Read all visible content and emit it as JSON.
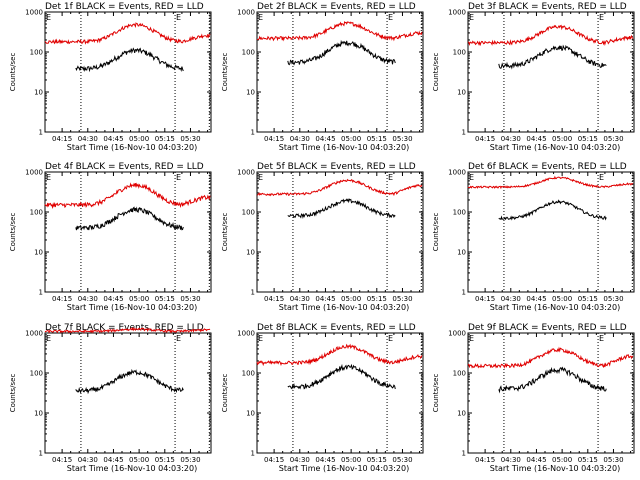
{
  "figure": {
    "common": {
      "type": "line",
      "xlabel": "Start Time (16-Nov-10 04:03:20)",
      "ylabel": "Counts/sec",
      "xlim": [
        "04:05",
        "05:42"
      ],
      "ylim": [
        1,
        1000
      ],
      "y_scale": "log",
      "x_tick_labels": [
        "04:15",
        "04:30",
        "04:45",
        "05:00",
        "05:15",
        "05:30"
      ],
      "y_tick_labels": [
        "1",
        "10",
        "100",
        "1000"
      ],
      "event_marker_label": "E",
      "vertical_markers": [
        "04:05",
        "04:26",
        "05:21",
        "05:41"
      ],
      "series_styles": [
        {
          "key": "events",
          "color": "#000000"
        },
        {
          "key": "lld",
          "color": "#e00000"
        }
      ]
    },
    "panels": [
      {
        "title": "Det 1f BLACK = Events, RED = LLD",
        "events": {
          "base": 38,
          "peak": 110,
          "noise": 0.14
        },
        "lld": {
          "base": 180,
          "peak": 480,
          "noise": 0.1,
          "end": 260
        }
      },
      {
        "title": "Det 2f BLACK = Events, RED = LLD",
        "events": {
          "base": 55,
          "peak": 170,
          "noise": 0.14
        },
        "lld": {
          "base": 220,
          "peak": 520,
          "noise": 0.1,
          "end": 300
        }
      },
      {
        "title": "Det 3f BLACK = Events, RED = LLD",
        "events": {
          "base": 45,
          "peak": 130,
          "noise": 0.14
        },
        "lld": {
          "base": 170,
          "peak": 430,
          "noise": 0.1,
          "end": 230
        }
      },
      {
        "title": "Det 4f BLACK = Events, RED = LLD",
        "events": {
          "base": 40,
          "peak": 115,
          "noise": 0.14
        },
        "lld": {
          "base": 150,
          "peak": 470,
          "noise": 0.12,
          "end": 230
        }
      },
      {
        "title": "Det 5f BLACK = Events, RED = LLD",
        "events": {
          "base": 80,
          "peak": 190,
          "noise": 0.1
        },
        "lld": {
          "base": 280,
          "peak": 620,
          "noise": 0.07,
          "end": 460
        }
      },
      {
        "title": "Det 6f BLACK = Events, RED = LLD",
        "events": {
          "base": 70,
          "peak": 180,
          "noise": 0.08
        },
        "lld": {
          "base": 420,
          "peak": 720,
          "noise": 0.05,
          "end": 500
        }
      },
      {
        "title": "Det 7f BLACK = Events, RED = LLD",
        "events": {
          "base": 36,
          "peak": 105,
          "noise": 0.13
        },
        "lld": {
          "base": 1100,
          "peak": 1250,
          "noise": 0.06,
          "end": 1200
        }
      },
      {
        "title": "Det 8f BLACK = Events, RED = LLD",
        "events": {
          "base": 45,
          "peak": 140,
          "noise": 0.14
        },
        "lld": {
          "base": 180,
          "peak": 460,
          "noise": 0.1,
          "end": 260
        }
      },
      {
        "title": "Det 9f BLACK = Events, RED = LLD",
        "events": {
          "base": 40,
          "peak": 120,
          "noise": 0.15
        },
        "lld": {
          "base": 150,
          "peak": 380,
          "noise": 0.1,
          "end": 260
        }
      }
    ]
  }
}
